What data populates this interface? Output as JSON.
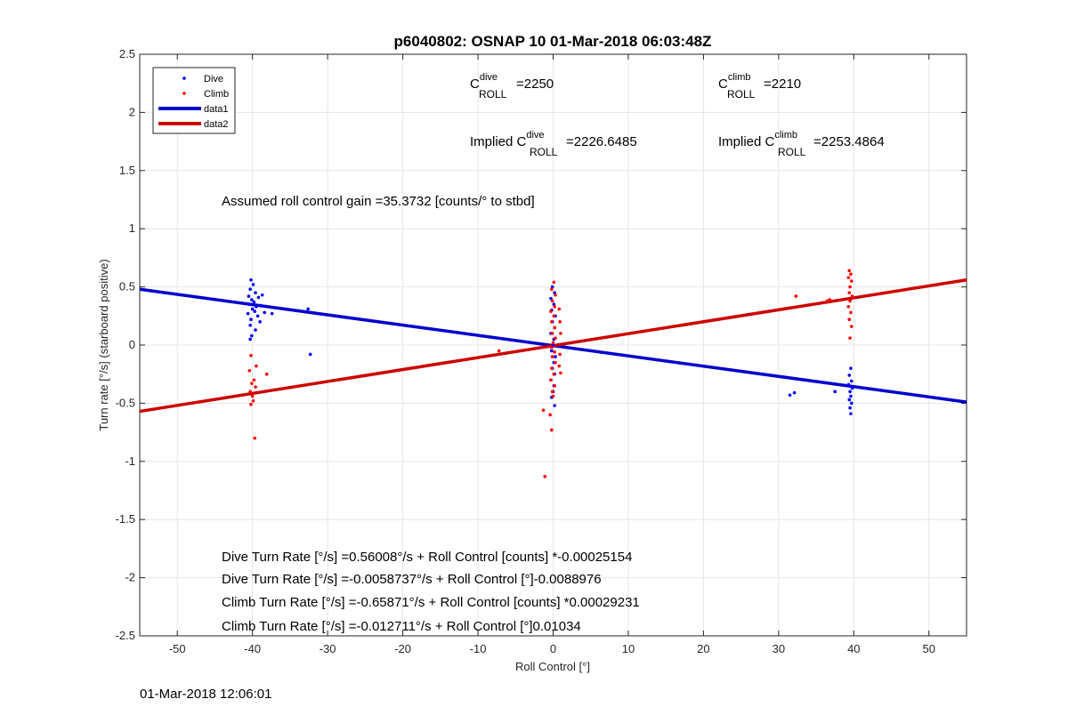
{
  "chart_data": {
    "type": "scatter",
    "title": "p6040802: OSNAP 10 01-Mar-2018 06:03:48Z",
    "xlabel": "Roll Control [°]",
    "ylabel": "Turn rate [°/s] (starboard positive)",
    "xlim": [
      -55,
      55
    ],
    "ylim": [
      -2.5,
      2.5
    ],
    "xticks": [
      "-50",
      "-40",
      "-30",
      "-20",
      "-10",
      "0",
      "10",
      "20",
      "30",
      "40",
      "50"
    ],
    "yticks": [
      "2.5",
      "2",
      "1.5",
      "1",
      "0.5",
      "0",
      "-0.5",
      "-1",
      "-1.5",
      "-2",
      "-2.5"
    ],
    "grid": true,
    "legend_position": "top-left",
    "legend": [
      {
        "label": "Dive",
        "kind": "point",
        "color": "#0000ff"
      },
      {
        "label": "Climb",
        "kind": "point",
        "color": "#ff0000"
      },
      {
        "label": "data1",
        "kind": "line",
        "color": "#0000cc"
      },
      {
        "label": "data2",
        "kind": "line",
        "color": "#cc0000"
      }
    ],
    "series": [
      {
        "name": "Dive",
        "kind": "scatter",
        "color": "#0000ff",
        "points": [
          [
            -40.2,
            0.56
          ],
          [
            -39.9,
            0.52
          ],
          [
            -40.3,
            0.48
          ],
          [
            -39.6,
            0.45
          ],
          [
            -40.5,
            0.42
          ],
          [
            -39.2,
            0.41
          ],
          [
            -38.7,
            0.43
          ],
          [
            -40.1,
            0.39
          ],
          [
            -39.8,
            0.37
          ],
          [
            -40.4,
            0.35
          ],
          [
            -39.5,
            0.33
          ],
          [
            -38.9,
            0.34
          ],
          [
            -40.0,
            0.31
          ],
          [
            -39.7,
            0.29
          ],
          [
            -40.6,
            0.27
          ],
          [
            -38.4,
            0.28
          ],
          [
            -39.3,
            0.25
          ],
          [
            -40.2,
            0.22
          ],
          [
            -39.0,
            0.2
          ],
          [
            -40.3,
            0.17
          ],
          [
            -39.6,
            0.13
          ],
          [
            -40.1,
            0.08
          ],
          [
            -40.3,
            0.05
          ],
          [
            -37.4,
            0.27
          ],
          [
            -32.6,
            0.31
          ],
          [
            -32.3,
            -0.08
          ],
          [
            -0.1,
            0.5
          ],
          [
            0.2,
            0.45
          ],
          [
            -0.3,
            0.4
          ],
          [
            0.1,
            0.35
          ],
          [
            -0.2,
            0.3
          ],
          [
            0.3,
            0.25
          ],
          [
            -0.1,
            0.2
          ],
          [
            0.2,
            0.15
          ],
          [
            -0.3,
            0.1
          ],
          [
            0.1,
            0.05
          ],
          [
            0.0,
            0.0
          ],
          [
            -0.2,
            -0.05
          ],
          [
            0.3,
            -0.1
          ],
          [
            0.1,
            -0.15
          ],
          [
            -0.1,
            -0.2
          ],
          [
            0.2,
            -0.25
          ],
          [
            -0.3,
            -0.3
          ],
          [
            0.1,
            -0.35
          ],
          [
            0.0,
            -0.4
          ],
          [
            -0.2,
            -0.45
          ],
          [
            0.2,
            -0.52
          ],
          [
            31.5,
            -0.43
          ],
          [
            32.1,
            -0.41
          ],
          [
            37.5,
            -0.4
          ],
          [
            39.6,
            -0.2
          ],
          [
            39.4,
            -0.26
          ],
          [
            39.7,
            -0.31
          ],
          [
            39.3,
            -0.34
          ],
          [
            39.8,
            -0.37
          ],
          [
            39.5,
            -0.4
          ],
          [
            39.6,
            -0.44
          ],
          [
            39.4,
            -0.47
          ],
          [
            39.7,
            -0.5
          ],
          [
            39.5,
            -0.54
          ],
          [
            39.6,
            -0.59
          ],
          [
            39.8,
            -0.36
          ]
        ]
      },
      {
        "name": "Climb",
        "kind": "scatter",
        "color": "#ff0000",
        "points": [
          [
            -40.2,
            -0.09
          ],
          [
            -39.5,
            -0.18
          ],
          [
            -38.1,
            -0.25
          ],
          [
            -40.4,
            -0.22
          ],
          [
            -39.8,
            -0.3
          ],
          [
            -40.1,
            -0.33
          ],
          [
            -39.6,
            -0.36
          ],
          [
            -40.3,
            -0.4
          ],
          [
            -40.0,
            -0.44
          ],
          [
            -39.9,
            -0.48
          ],
          [
            -40.2,
            -0.51
          ],
          [
            -39.7,
            -0.8
          ],
          [
            -7.2,
            -0.05
          ],
          [
            -1.1,
            -1.13
          ],
          [
            -1.3,
            -0.56
          ],
          [
            -0.2,
            -0.73
          ],
          [
            -0.4,
            -0.6
          ],
          [
            0.1,
            0.54
          ],
          [
            -0.2,
            0.48
          ],
          [
            0.3,
            0.43
          ],
          [
            -0.1,
            0.38
          ],
          [
            0.2,
            0.33
          ],
          [
            -0.3,
            0.29
          ],
          [
            0.1,
            0.25
          ],
          [
            0.8,
            0.31
          ],
          [
            0.9,
            0.2
          ],
          [
            1.0,
            0.1
          ],
          [
            -0.2,
            0.2
          ],
          [
            0.2,
            0.15
          ],
          [
            -0.1,
            0.1
          ],
          [
            0.3,
            0.06
          ],
          [
            0.0,
            0.02
          ],
          [
            -0.2,
            -0.02
          ],
          [
            0.2,
            -0.06
          ],
          [
            0.9,
            -0.08
          ],
          [
            0.8,
            -0.18
          ],
          [
            1.0,
            -0.24
          ],
          [
            -0.1,
            -0.1
          ],
          [
            0.3,
            -0.15
          ],
          [
            -0.2,
            -0.2
          ],
          [
            0.1,
            -0.25
          ],
          [
            -0.3,
            -0.3
          ],
          [
            0.2,
            -0.35
          ],
          [
            -0.1,
            -0.4
          ],
          [
            0.0,
            -0.44
          ],
          [
            32.3,
            0.42
          ],
          [
            36.8,
            0.39
          ],
          [
            36.5,
            0.38
          ],
          [
            39.4,
            0.64
          ],
          [
            39.6,
            0.61
          ],
          [
            39.3,
            0.58
          ],
          [
            39.7,
            0.55
          ],
          [
            39.5,
            0.5
          ],
          [
            39.4,
            0.45
          ],
          [
            39.8,
            0.42
          ],
          [
            39.5,
            0.38
          ],
          [
            39.3,
            0.33
          ],
          [
            39.6,
            0.28
          ],
          [
            39.4,
            0.22
          ],
          [
            39.7,
            0.16
          ],
          [
            39.5,
            0.06
          ]
        ]
      },
      {
        "name": "data1",
        "kind": "line",
        "color": "#0000cc",
        "x": [
          -55,
          55
        ],
        "y": [
          0.48,
          -0.49
        ]
      },
      {
        "name": "data2",
        "kind": "line",
        "color": "#cc0000",
        "x": [
          -55,
          55
        ],
        "y": [
          -0.57,
          0.56
        ]
      }
    ],
    "annotations": {
      "c_roll_dive": {
        "base": "C",
        "sup": "dive",
        "sub": "ROLL",
        "value": "=2250"
      },
      "c_roll_climb": {
        "base": "C",
        "sup": "climb",
        "sub": "ROLL",
        "value": "=2210"
      },
      "implied_dive": {
        "prefix": "Implied C",
        "sup": "dive",
        "sub": "ROLL",
        "value": "=2226.6485"
      },
      "implied_climb": {
        "prefix": "Implied C",
        "sup": "climb",
        "sub": "ROLL",
        "value": "=2253.4864"
      },
      "gain": "Assumed roll control gain =35.3732 [counts/° to stbd]",
      "fit_lines": [
        "Dive Turn Rate [°/s] =0.56008°/s + Roll Control [counts] *-0.00025154",
        "Dive Turn Rate [°/s] =-0.0058737°/s + Roll Control [°]-0.0088976",
        "Climb Turn Rate [°/s] =-0.65871°/s + Roll Control [counts] *0.00029231",
        "Climb Turn Rate [°/s] =-0.012711°/s + Roll Control [°]0.01034"
      ]
    }
  },
  "footer": {
    "timestamp": "01-Mar-2018 12:06:01"
  }
}
